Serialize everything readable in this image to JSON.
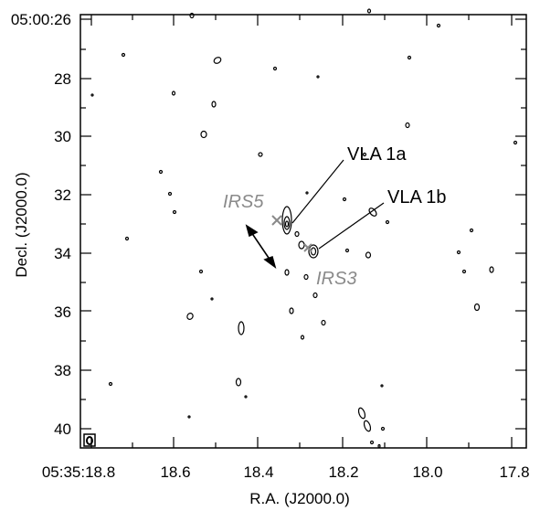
{
  "chart_data": {
    "type": "contour",
    "xlabel": "R.A. (J2000.0)",
    "ylabel": "Decl. (J2000.0)",
    "x_ticks": [
      "05:35:18.8",
      "18.6",
      "18.4",
      "18.2",
      "18.0",
      "17.8"
    ],
    "y_ticks": [
      "05:00:26",
      "28",
      "30",
      "32",
      "34",
      "36",
      "38",
      "40"
    ],
    "labels": {
      "vla1a": "VLA 1a",
      "vla1b": "VLA 1b",
      "irs5": "IRS5",
      "irs3": "IRS3"
    },
    "colors": {
      "contour": "#000000",
      "ir_label": "#8a8a8a"
    }
  }
}
